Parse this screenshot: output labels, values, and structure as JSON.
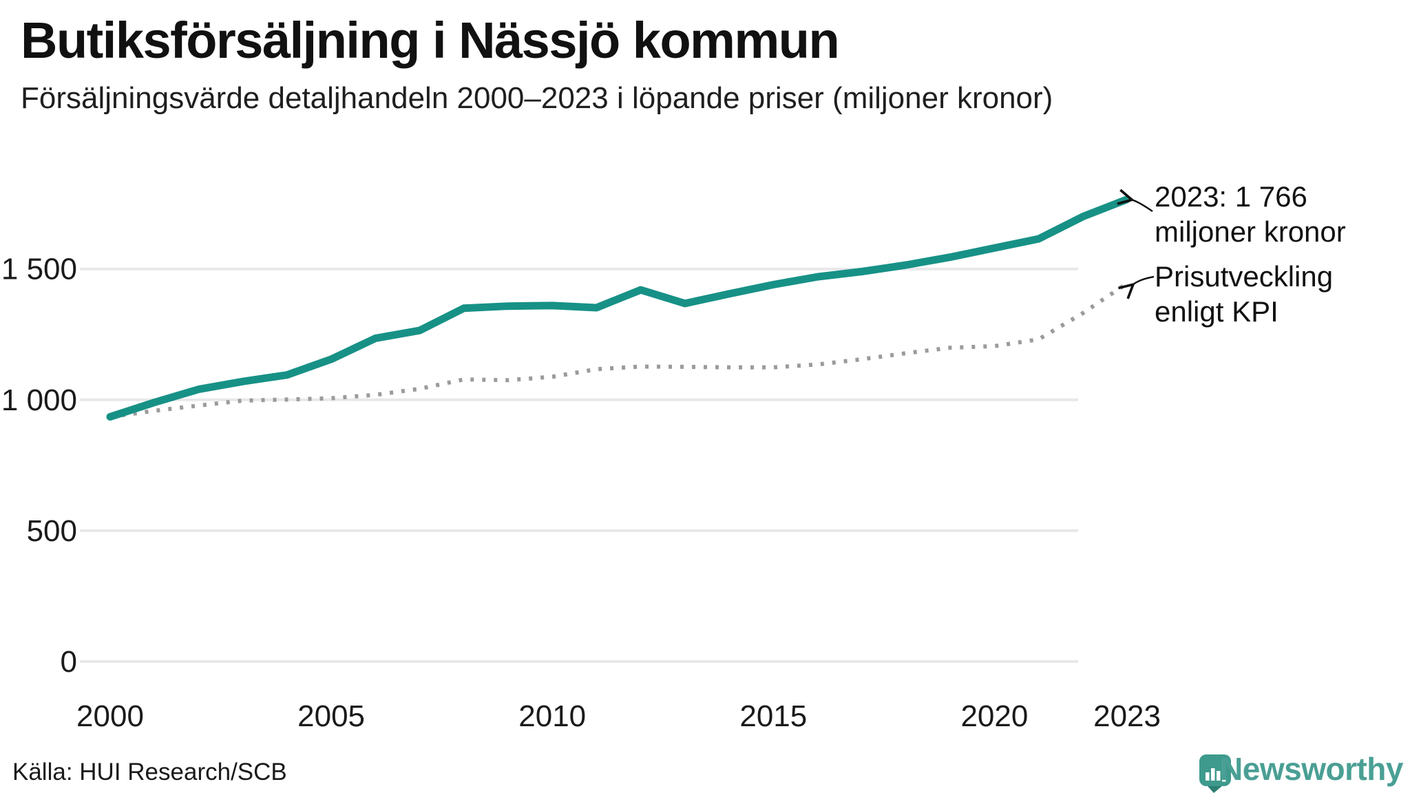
{
  "header": {
    "title": "Butiksförsäljning i Nässjö kommun",
    "subtitle": "Försäljningsvärde detaljhandeln 2000–2023 i löpande priser (miljoner kronor)"
  },
  "annotations": {
    "latest": {
      "line1": "2023: 1 766",
      "line2": "miljoner kronor"
    },
    "kpi": {
      "line1": "Prisutveckling",
      "line2": "enligt KPI"
    }
  },
  "footer": {
    "source": "Källa: HUI Research/SCB",
    "brand": "Newsworthy"
  },
  "colors": {
    "sales_line": "#179186",
    "kpi_line": "#9b9b9b",
    "gridline": "#e8e8ea",
    "text": "#1a1a1a",
    "brand_teal": "#4a9f94",
    "logo_bubble": "#3e9a8d",
    "logo_tail": "#2e7e73"
  },
  "chart_data": {
    "type": "line",
    "title": "Butiksförsäljning i Nässjö kommun",
    "subtitle": "Försäljningsvärde detaljhandeln 2000–2023 i löpande priser (miljoner kronor)",
    "x": [
      2000,
      2001,
      2002,
      2003,
      2004,
      2005,
      2006,
      2007,
      2008,
      2009,
      2010,
      2011,
      2012,
      2013,
      2014,
      2015,
      2016,
      2017,
      2018,
      2019,
      2020,
      2021,
      2022,
      2023
    ],
    "series": [
      {
        "name": "Försäljningsvärde i löpande priser",
        "style": "solid",
        "color": "#179186",
        "values": [
          935,
          990,
          1040,
          1070,
          1095,
          1155,
          1235,
          1265,
          1350,
          1358,
          1360,
          1352,
          1420,
          1368,
          1405,
          1440,
          1470,
          1490,
          1515,
          1545,
          1580,
          1615,
          1700,
          1766
        ]
      },
      {
        "name": "Prisutveckling enligt KPI",
        "style": "dotted",
        "color": "#9b9b9b",
        "values": [
          935,
          958,
          978,
          997,
          1001,
          1006,
          1019,
          1042,
          1078,
          1075,
          1088,
          1117,
          1127,
          1126,
          1124,
          1124,
          1135,
          1155,
          1178,
          1199,
          1205,
          1231,
          1331,
          1445
        ]
      }
    ],
    "xticks": [
      2000,
      2005,
      2010,
      2015,
      2020,
      2023
    ],
    "yticks": [
      {
        "v": 0,
        "label": "0"
      },
      {
        "v": 500,
        "label": "500"
      },
      {
        "v": 1000,
        "label": "1 000"
      },
      {
        "v": 1500,
        "label": "1 500"
      }
    ],
    "xlabel": "",
    "ylabel": "",
    "ylim": [
      0,
      2000
    ],
    "xlim": [
      2000,
      2023
    ],
    "grid": "horizontal",
    "legend": "annotated-at-line-ends",
    "annotation_last_value": "2023: 1 766 miljoner kronor"
  }
}
